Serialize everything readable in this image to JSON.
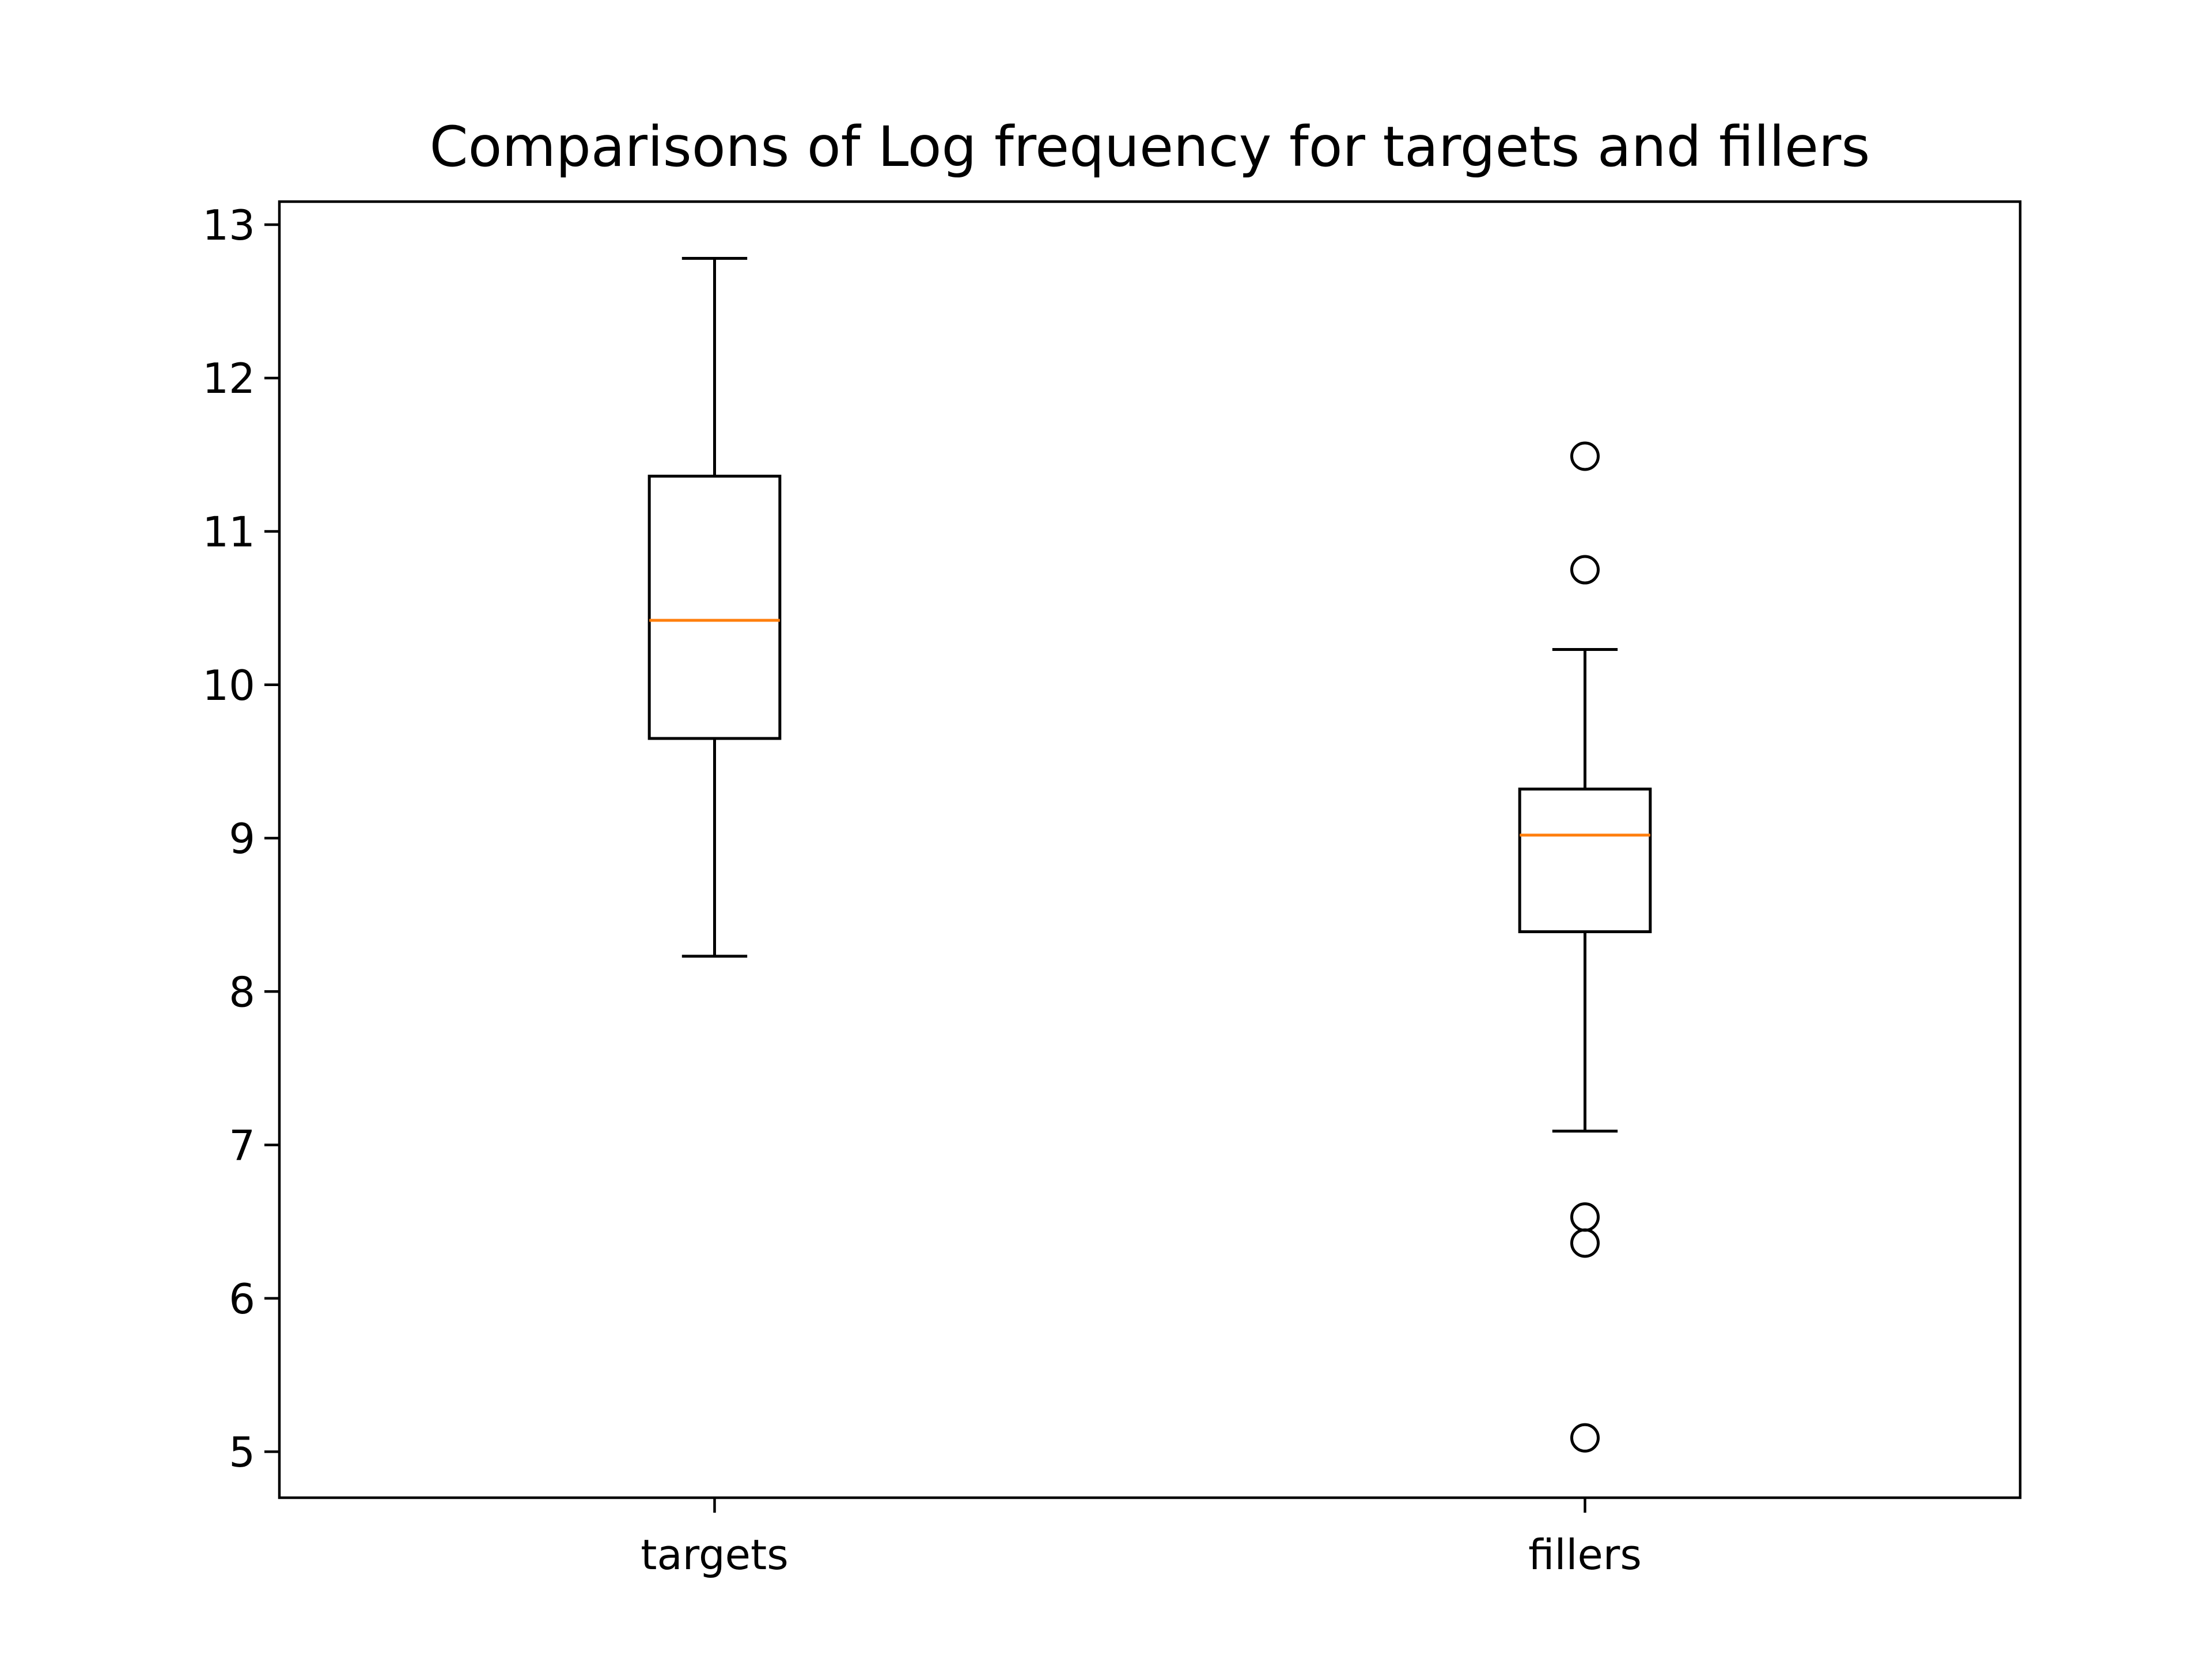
{
  "chart_data": {
    "type": "box",
    "title": "Comparisons of Log frequency for targets and fillers",
    "xlabel": "",
    "ylabel": "",
    "ylim": [
      4.7,
      13.15
    ],
    "yticks": [
      5,
      6,
      7,
      8,
      9,
      10,
      11,
      12,
      13
    ],
    "categories": [
      "targets",
      "fillers"
    ],
    "boxes": [
      {
        "category": "targets",
        "whisker_low": 8.23,
        "q1": 9.65,
        "median": 10.42,
        "q3": 11.36,
        "whisker_high": 12.78,
        "outliers": []
      },
      {
        "category": "fillers",
        "whisker_low": 7.09,
        "q1": 8.39,
        "median": 9.02,
        "q3": 9.32,
        "whisker_high": 10.23,
        "outliers": [
          11.49,
          10.75,
          6.53,
          6.36,
          5.09
        ]
      }
    ],
    "grid": false,
    "legend": "none",
    "colors": {
      "box": "#000000",
      "median": "#ff7f0e",
      "outlier": "#000000"
    }
  }
}
